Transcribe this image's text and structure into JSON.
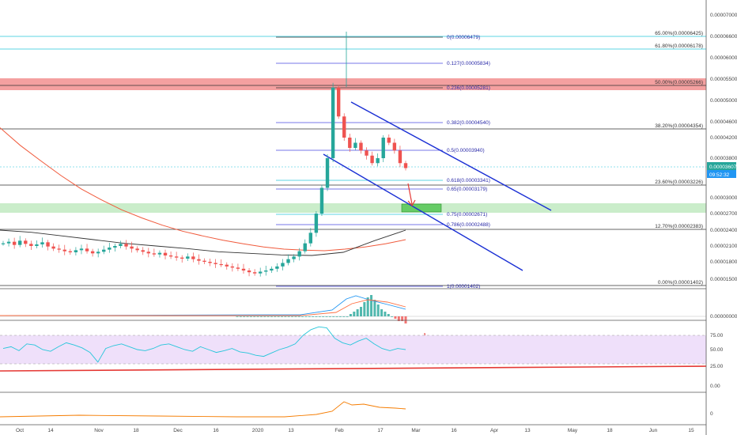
{
  "chart_data": {
    "type": "candlestick",
    "x_axis": {
      "labels": [
        "Oct",
        "14",
        "Nov",
        "18",
        "Dec",
        "16",
        "2020",
        "13",
        "Feb",
        "17",
        "Mar",
        "16",
        "Apr",
        "13",
        "May",
        "18",
        "Jun",
        "15"
      ]
    },
    "price_axis": {
      "labels": [
        "0.00007000",
        "0.00006600",
        "0.00006000",
        "0.00005500",
        "0.00005000",
        "0.00004600",
        "0.00004200",
        "0.00003800",
        "0.00003000",
        "0.00002700",
        "0.00002400",
        "0.00002100",
        "0.00001800",
        "0.00001500"
      ],
      "last_price": "0.00003607",
      "countdown": "09:52:32"
    },
    "fib_retracement": [
      {
        "label": "0(0.00006479)"
      },
      {
        "label": "0.127(0.00005834)"
      },
      {
        "label": "0.236(0.00005281)"
      },
      {
        "label": "0.382(0.00004540)"
      },
      {
        "label": "0.5(0.00003940)"
      },
      {
        "label": "0.618(0.00003341)"
      },
      {
        "label": "0.65(0.00003179)"
      },
      {
        "label": "0.75(0.00002671)"
      },
      {
        "label": "0.786(0.00002488)"
      },
      {
        "label": "1(0.00001402)"
      }
    ],
    "long_retracement": [
      {
        "label": "65.00%(0.00006425)"
      },
      {
        "label": "61.80%(0.00006178)"
      },
      {
        "label": "50.00%(0.00005266)"
      },
      {
        "label": "38.20%(0.00004354)"
      },
      {
        "label": "23.60%(0.00003226)"
      },
      {
        "label": "12.70%(0.00002383)"
      },
      {
        "label": "0.00%(0.00001402)"
      }
    ],
    "price_series": [
      2.15e-05,
      2.18e-05,
      2.12e-05,
      2.2e-05,
      2.14e-05,
      2.1e-05,
      2.13e-05,
      2.17e-05,
      2.09e-05,
      2.05e-05,
      2.03e-05,
      2e-05,
      1.98e-05,
      2.02e-05,
      2.05e-05,
      2e-05,
      1.96e-05,
      1.99e-05,
      2.03e-05,
      2.07e-05,
      2.1e-05,
      2.14e-05,
      2.09e-05,
      2.05e-05,
      2.02e-05,
      1.99e-05,
      1.96e-05,
      1.94e-05,
      1.97e-05,
      1.92e-05,
      1.9e-05,
      1.88e-05,
      1.86e-05,
      1.9e-05,
      1.85e-05,
      1.82e-05,
      1.8e-05,
      1.78e-05,
      1.76e-05,
      1.75e-05,
      1.72e-05,
      1.7e-05,
      1.68e-05,
      1.65e-05,
      1.62e-05,
      1.6e-05,
      1.63e-05,
      1.65e-05,
      1.68e-05,
      1.72e-05,
      1.78e-05,
      1.85e-05,
      1.9e-05,
      2e-05,
      2.15e-05,
      2.35e-05,
      2.7e-05,
      3.2e-05,
      3.8e-05,
      5.3e-05,
      4.7e-05,
      4.2e-05,
      4e-05,
      4.1e-05,
      3.95e-05,
      3.85e-05,
      3.7e-05,
      3.8e-05,
      4.2e-05,
      4.1e-05,
      3.95e-05,
      3.7e-05,
      3.6e-05
    ],
    "ema_red": [
      4.45e-05,
      4.05e-05,
      3.75e-05,
      3.45e-05,
      3.18e-05,
      2.96e-05,
      2.77e-05,
      2.62e-05,
      2.49e-05,
      2.38e-05,
      2.29e-05,
      2.21e-05,
      2.14e-05,
      2.08e-05,
      2.04e-05,
      2.02e-05,
      2.01e-05,
      2.04e-05,
      2.08e-05,
      2.14e-05,
      2.22e-05
    ],
    "ma_black": [
      2.4e-05,
      2.36e-05,
      2.29e-05,
      2.22e-05,
      2.15e-05,
      2.1e-05,
      2.05e-05,
      1.99e-05,
      1.96e-05,
      1.93e-05,
      1.92e-05,
      1.98e-05,
      2.2e-05,
      2.4e-05
    ],
    "rsi": {
      "labels": [
        "75.00",
        "50.00",
        "25.00"
      ],
      "values": [
        52,
        55,
        48,
        60,
        58,
        50,
        47,
        55,
        62,
        58,
        53,
        45,
        28,
        52,
        57,
        60,
        55,
        50,
        48,
        52,
        58,
        60,
        55,
        50,
        47,
        55,
        50,
        45,
        48,
        52,
        46,
        44,
        40,
        38,
        44,
        50,
        54,
        60,
        75,
        85,
        90,
        88,
        70,
        62,
        58,
        65,
        70,
        60,
        52,
        48,
        52,
        50
      ]
    },
    "macd": {
      "labels": [
        "0.00000000"
      ],
      "hist": [
        0,
        0,
        0,
        0,
        0,
        0,
        0,
        0,
        0,
        0,
        0,
        0,
        0,
        0,
        0,
        0,
        0,
        0,
        0,
        0,
        0,
        0,
        0,
        0,
        0,
        0,
        0,
        0,
        0,
        0,
        0,
        0,
        0,
        1,
        2,
        3,
        4,
        6,
        8,
        9,
        7,
        5,
        3,
        2,
        1,
        0,
        -1,
        -2,
        -2,
        -3
      ]
    },
    "bottom_panel": {
      "labels": [
        "0.00",
        "0"
      ]
    }
  },
  "colors": {
    "fib_line": "#4a4ae0",
    "fib_cyan": "#26c6da",
    "channel": "#1a2fd4",
    "zone_red": "#f08080",
    "zone_green": "#66cc66",
    "ema": "#f05a3c",
    "rsi_band": "#efe0fa",
    "up_candle": "#26a69a",
    "down_candle": "#ef5350",
    "price_tag": "#26a69a",
    "countdown_tag": "#2196f3"
  }
}
